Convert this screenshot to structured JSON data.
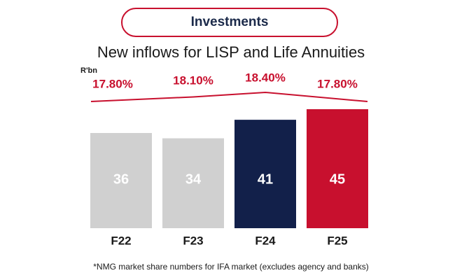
{
  "header": {
    "badge_label": "Investments"
  },
  "colors": {
    "grey": "#d0d0d0",
    "navy": "#12204a",
    "red": "#c8102e",
    "pill_border": "#c8102e",
    "pill_text": "#1b2a4a"
  },
  "chart_data": {
    "type": "bar",
    "title": "New inflows for LISP and Life Annuities",
    "unit_label": "R'bn",
    "categories": [
      "F22",
      "F23",
      "F24",
      "F25"
    ],
    "values": [
      36,
      34,
      41,
      45
    ],
    "bar_colors": [
      "#d0d0d0",
      "#d0d0d0",
      "#12204a",
      "#c8102e"
    ],
    "market_share_labels": [
      "17.80%",
      "18.10%",
      "18.40%",
      "17.80%"
    ],
    "market_share_values": [
      17.8,
      18.1,
      18.4,
      17.8
    ],
    "ylim": [
      0,
      45
    ],
    "xlabel": "",
    "ylabel": ""
  },
  "footnote": "*NMG market share numbers for IFA market (excludes agency and banks)"
}
